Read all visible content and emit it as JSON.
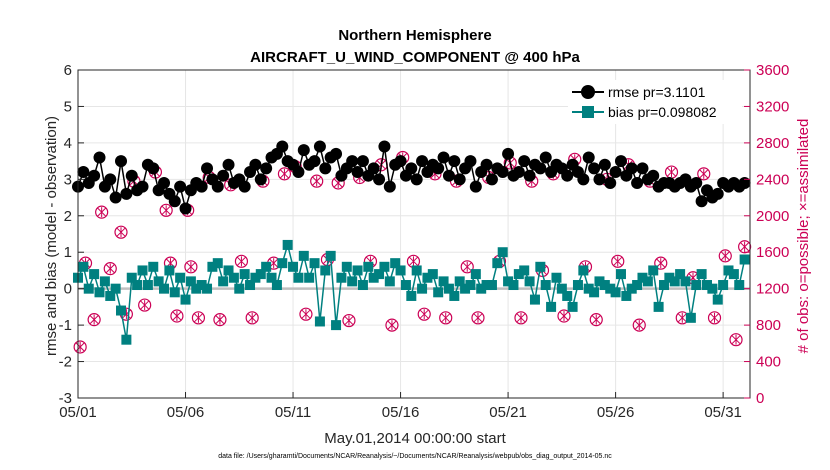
{
  "chart_data": {
    "type": "line",
    "title": "Northern Hemisphere",
    "subtitle": "AIRCRAFT_U_WIND_COMPONENT @ 400 hPa",
    "xlabel": "May.01,2014 00:00:00 start",
    "ylabel_left": "rmse and bias (model - observation)",
    "ylabel_right": "# of obs: o=possible; ×=assimilated",
    "footer": "data file: /Users/gharamti/Documents/NCAR/Reanalysis/~/Documents/NCAR/Reanalysis/webpub/obs_diag_output_2014-05.nc",
    "xlim": [
      0,
      31.25
    ],
    "ylim_left": [
      -3,
      6
    ],
    "ylim_right": [
      0,
      3600
    ],
    "x_ticks": [
      0,
      5,
      10,
      15,
      20,
      25,
      30
    ],
    "x_tick_labels": [
      "05/01",
      "05/06",
      "05/11",
      "05/16",
      "05/21",
      "05/26",
      "05/31"
    ],
    "y_left_ticks": [
      "-3",
      "-2",
      "-1",
      "0",
      "1",
      "2",
      "3",
      "4",
      "5",
      "6"
    ],
    "y_right_ticks": [
      "0",
      "400",
      "800",
      "1200",
      "1600",
      "2000",
      "2400",
      "2800",
      "3200",
      "3600"
    ],
    "grid": true,
    "legend_position": "top-right",
    "colors": {
      "rmse": "#000000",
      "bias": "#008080",
      "obs": "#cc0055",
      "zero_line": "#bfbfbf"
    },
    "series": [
      {
        "name": "rmse pr=3.1101",
        "axis": "left",
        "x": [
          0,
          0.25,
          0.5,
          0.75,
          1,
          1.25,
          1.5,
          1.75,
          2,
          2.25,
          2.5,
          2.75,
          3,
          3.25,
          3.5,
          3.75,
          4,
          4.25,
          4.5,
          4.75,
          5,
          5.25,
          5.5,
          5.75,
          6,
          6.25,
          6.5,
          6.75,
          7,
          7.25,
          7.5,
          7.75,
          8,
          8.25,
          8.5,
          8.75,
          9,
          9.25,
          9.5,
          9.75,
          10,
          10.25,
          10.5,
          10.75,
          11,
          11.25,
          11.5,
          11.75,
          12,
          12.25,
          12.5,
          12.75,
          13,
          13.25,
          13.5,
          13.75,
          14,
          14.25,
          14.5,
          14.75,
          15,
          15.25,
          15.5,
          15.75,
          16,
          16.25,
          16.5,
          16.75,
          17,
          17.25,
          17.5,
          17.75,
          18,
          18.25,
          18.5,
          18.75,
          19,
          19.25,
          19.5,
          19.75,
          20,
          20.25,
          20.5,
          20.75,
          21,
          21.25,
          21.5,
          21.75,
          22,
          22.25,
          22.5,
          22.75,
          23,
          23.25,
          23.5,
          23.75,
          24,
          24.25,
          24.5,
          24.75,
          25,
          25.25,
          25.5,
          25.75,
          26,
          26.25,
          26.5,
          26.75,
          27,
          27.25,
          27.5,
          27.75,
          28,
          28.25,
          28.5,
          28.75,
          29,
          29.25,
          29.5,
          29.75,
          30,
          30.25,
          30.5,
          30.75,
          31
        ],
        "values": [
          2.8,
          3.2,
          2.9,
          3.1,
          3.6,
          2.8,
          3.0,
          2.5,
          3.5,
          2.6,
          3.1,
          2.7,
          2.8,
          3.4,
          3.3,
          2.7,
          2.9,
          2.6,
          2.4,
          2.8,
          2.2,
          2.7,
          2.9,
          2.8,
          3.3,
          3.0,
          2.8,
          3.1,
          3.4,
          2.9,
          3.0,
          2.8,
          3.2,
          3.4,
          3.0,
          3.3,
          3.6,
          3.7,
          3.9,
          3.5,
          3.4,
          3.2,
          3.8,
          3.4,
          3.5,
          3.9,
          3.3,
          3.6,
          3.7,
          3.1,
          3.3,
          3.5,
          3.2,
          3.5,
          3.1,
          3.3,
          3.0,
          3.9,
          2.8,
          3.4,
          3.5,
          3.1,
          3.3,
          3.0,
          3.5,
          3.2,
          3.4,
          3.3,
          3.6,
          3.1,
          3.5,
          3.0,
          3.3,
          3.5,
          2.8,
          3.2,
          3.4,
          3.0,
          3.3,
          3.2,
          3.7,
          3.1,
          3.2,
          3.5,
          3.1,
          3.4,
          3.3,
          3.6,
          3.2,
          3.4,
          3.3,
          3.1,
          3.4,
          3.2,
          3.0,
          3.6,
          3.3,
          3.0,
          3.4,
          2.9,
          3.2,
          3.5,
          3.1,
          3.3,
          2.9,
          3.3,
          3.0,
          3.1,
          2.8,
          2.9,
          2.9,
          2.8,
          2.9,
          3.0,
          2.8,
          2.9,
          2.4,
          2.7,
          2.5,
          2.6,
          2.9,
          2.8,
          2.9,
          2.8,
          2.9
        ],
        "marker": "circle"
      },
      {
        "name": "bias pr=0.098082",
        "axis": "left",
        "x": [
          0,
          0.25,
          0.5,
          0.75,
          1,
          1.25,
          1.5,
          1.75,
          2,
          2.25,
          2.5,
          2.75,
          3,
          3.25,
          3.5,
          3.75,
          4,
          4.25,
          4.5,
          4.75,
          5,
          5.25,
          5.5,
          5.75,
          6,
          6.25,
          6.5,
          6.75,
          7,
          7.25,
          7.5,
          7.75,
          8,
          8.25,
          8.5,
          8.75,
          9,
          9.25,
          9.5,
          9.75,
          10,
          10.25,
          10.5,
          10.75,
          11,
          11.25,
          11.5,
          11.75,
          12,
          12.25,
          12.5,
          12.75,
          13,
          13.25,
          13.5,
          13.75,
          14,
          14.25,
          14.5,
          14.75,
          15,
          15.25,
          15.5,
          15.75,
          16,
          16.25,
          16.5,
          16.75,
          17,
          17.25,
          17.5,
          17.75,
          18,
          18.25,
          18.5,
          18.75,
          19,
          19.25,
          19.5,
          19.75,
          20,
          20.25,
          20.5,
          20.75,
          21,
          21.25,
          21.5,
          21.75,
          22,
          22.25,
          22.5,
          22.75,
          23,
          23.25,
          23.5,
          23.75,
          24,
          24.25,
          24.5,
          24.75,
          25,
          25.25,
          25.5,
          25.75,
          26,
          26.25,
          26.5,
          26.75,
          27,
          27.25,
          27.5,
          27.75,
          28,
          28.25,
          28.5,
          28.75,
          29,
          29.25,
          29.5,
          29.75,
          30,
          30.25,
          30.5,
          30.75,
          31
        ],
        "values": [
          0.3,
          0.6,
          0.0,
          0.4,
          -0.1,
          0.2,
          -0.2,
          0.0,
          -0.6,
          -1.4,
          0.3,
          0.1,
          0.5,
          0.1,
          0.6,
          0.2,
          0.0,
          0.5,
          -0.1,
          0.3,
          -0.3,
          0.2,
          0.0,
          0.1,
          0.0,
          0.6,
          0.7,
          0.2,
          0.5,
          0.3,
          0.0,
          0.4,
          0.1,
          0.3,
          0.4,
          0.6,
          0.3,
          0.1,
          0.7,
          1.2,
          0.6,
          0.3,
          0.9,
          0.3,
          0.7,
          -0.9,
          0.5,
          0.9,
          -1.0,
          0.3,
          0.6,
          0.2,
          0.5,
          0.1,
          0.6,
          0.3,
          0.4,
          0.6,
          0.2,
          0.7,
          0.5,
          0.1,
          -0.2,
          0.5,
          0.0,
          0.3,
          0.4,
          -0.1,
          0.2,
          0.0,
          -0.2,
          0.2,
          0.0,
          0.1,
          0.4,
          0.0,
          0.1,
          0.1,
          0.7,
          1.0,
          0.2,
          0.1,
          0.4,
          0.5,
          0.2,
          -0.3,
          0.6,
          0.1,
          -0.5,
          0.3,
          0.0,
          -0.2,
          -0.5,
          0.1,
          0.5,
          0.0,
          -0.1,
          0.2,
          0.1,
          0.0,
          -0.1,
          0.4,
          -0.2,
          0.0,
          0.1,
          0.3,
          0.2,
          0.5,
          -0.5,
          0.1,
          0.3,
          0.2,
          0.4,
          0.2,
          -0.8,
          0.1,
          0.4,
          0.1,
          0.0,
          -0.3,
          0.1,
          0.5,
          0.4,
          0.1,
          0.8
        ],
        "marker": "square"
      },
      {
        "name": "obs possible",
        "axis": "right",
        "x": [
          0.1,
          0.35,
          0.75,
          1.1,
          1.5,
          2.0,
          2.25,
          2.6,
          3.1,
          3.6,
          4.1,
          4.3,
          4.6,
          5.1,
          5.25,
          5.6,
          6.1,
          6.6,
          7.1,
          7.6,
          8.1,
          8.6,
          9.1,
          9.6,
          10.1,
          10.6,
          11.1,
          11.6,
          12.1,
          12.6,
          13.1,
          13.6,
          14.1,
          14.6,
          15.1,
          15.6,
          16.1,
          16.6,
          17.1,
          17.6,
          18.1,
          18.6,
          19.1,
          19.6,
          20.1,
          20.6,
          21.1,
          21.6,
          22.1,
          22.6,
          23.1,
          23.6,
          24.1,
          24.6,
          25.1,
          25.6,
          26.1,
          26.6,
          27.1,
          27.6,
          28.1,
          28.6,
          29.1,
          29.6,
          30.1,
          30.6,
          31.0
        ],
        "values": [
          560,
          1480,
          860,
          2040,
          1420,
          1820,
          920,
          2380,
          1020,
          2480,
          2060,
          1480,
          900,
          2060,
          1440,
          880,
          2420,
          860,
          2340,
          1500,
          880,
          2380,
          1480,
          2460,
          2540,
          920,
          2380,
          1520,
          2360,
          850,
          2420,
          1500,
          2560,
          800,
          2640,
          1500,
          920,
          2460,
          880,
          2380,
          1440,
          880,
          2420,
          1500,
          2580,
          880,
          2380,
          1400,
          2460,
          900,
          2620,
          1440,
          860,
          2400,
          1500,
          2560,
          800,
          2380,
          1480,
          2480,
          880,
          1320,
          2460,
          880,
          1560,
          640,
          1660
        ],
        "marker": "circle-open"
      },
      {
        "name": "obs assimilated",
        "axis": "right",
        "x": [
          0.1,
          0.35,
          0.75,
          1.1,
          1.5,
          2.0,
          2.25,
          2.6,
          3.1,
          3.6,
          4.1,
          4.3,
          4.6,
          5.1,
          5.25,
          5.6,
          6.1,
          6.6,
          7.1,
          7.6,
          8.1,
          8.6,
          9.1,
          9.6,
          10.1,
          10.6,
          11.1,
          11.6,
          12.1,
          12.6,
          13.1,
          13.6,
          14.1,
          14.6,
          15.1,
          15.6,
          16.1,
          16.6,
          17.1,
          17.6,
          18.1,
          18.6,
          19.1,
          19.6,
          20.1,
          20.6,
          21.1,
          21.6,
          22.1,
          22.6,
          23.1,
          23.6,
          24.1,
          24.6,
          25.1,
          25.6,
          26.1,
          26.6,
          27.1,
          27.6,
          28.1,
          28.6,
          29.1,
          29.6,
          30.1,
          30.6,
          31.0
        ],
        "values": [
          560,
          1480,
          860,
          2040,
          1420,
          1820,
          920,
          2380,
          1020,
          2480,
          2060,
          1480,
          900,
          2060,
          1440,
          880,
          2420,
          860,
          2340,
          1500,
          880,
          2380,
          1480,
          2460,
          2540,
          920,
          2380,
          1520,
          2360,
          850,
          2420,
          1500,
          2560,
          800,
          2640,
          1500,
          920,
          2460,
          880,
          2380,
          1440,
          880,
          2420,
          1500,
          2580,
          880,
          2380,
          1400,
          2460,
          900,
          2620,
          1440,
          860,
          2400,
          1500,
          2560,
          800,
          2380,
          1480,
          2480,
          880,
          1320,
          2460,
          880,
          1560,
          640,
          1660
        ],
        "marker": "x"
      }
    ]
  }
}
